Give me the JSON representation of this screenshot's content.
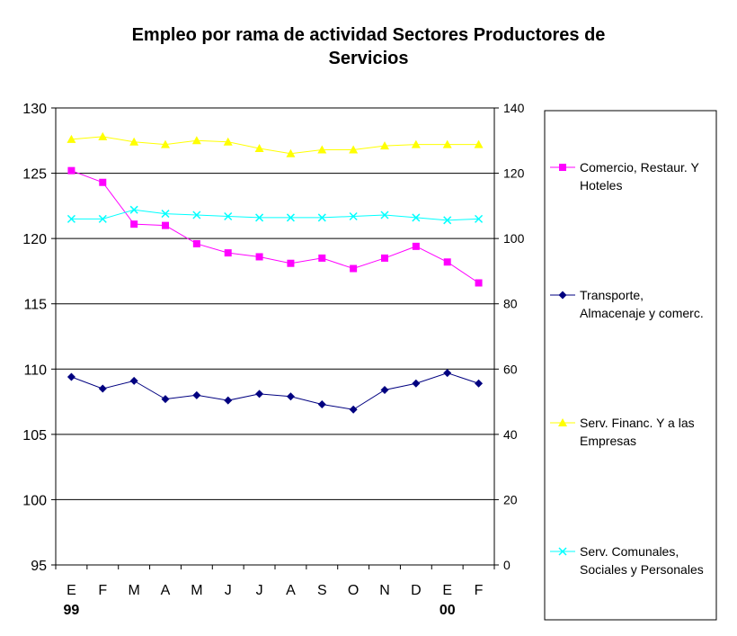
{
  "chart_data": {
    "type": "line",
    "title_lines": [
      "Empleo por rama de actividad Sectores Productores de",
      "Servicios"
    ],
    "categories": [
      "E",
      "F",
      "M",
      "A",
      "M",
      "J",
      "J",
      "A",
      "S",
      "O",
      "N",
      "D",
      "E",
      "F"
    ],
    "year_labels": [
      {
        "index": 0,
        "label": "99"
      },
      {
        "index": 12,
        "label": "00"
      }
    ],
    "y_left": {
      "min": 95,
      "max": 130,
      "ticks": [
        95,
        100,
        105,
        110,
        115,
        120,
        125,
        130
      ]
    },
    "y_right": {
      "min": 0,
      "max": 140,
      "ticks": [
        0,
        20,
        40,
        60,
        80,
        100,
        120,
        140
      ]
    },
    "grid": true,
    "legend_position": "right",
    "series": [
      {
        "name_lines": [
          "Comercio, Restaur. Y",
          "Hoteles"
        ],
        "axis": "left",
        "color": "#ff00ff",
        "marker": "square",
        "values": [
          125.2,
          124.3,
          121.1,
          121.0,
          119.6,
          118.9,
          118.6,
          118.1,
          118.5,
          117.7,
          118.5,
          119.4,
          118.2,
          116.6
        ]
      },
      {
        "name_lines": [
          "Transporte,",
          "Almacenaje y comerc."
        ],
        "axis": "left",
        "color": "#000080",
        "marker": "diamond",
        "values": [
          109.4,
          108.5,
          109.1,
          107.7,
          108.0,
          107.6,
          108.1,
          107.9,
          107.3,
          106.9,
          108.4,
          108.9,
          109.7,
          108.9
        ]
      },
      {
        "name_lines": [
          "Serv. Financ. Y a las",
          "Empresas"
        ],
        "axis": "left",
        "color": "#ffff00",
        "marker": "triangle",
        "values": [
          127.6,
          127.8,
          127.4,
          127.2,
          127.5,
          127.4,
          126.9,
          126.5,
          126.8,
          126.8,
          127.1,
          127.2,
          127.2,
          127.2
        ]
      },
      {
        "name_lines": [
          "Serv. Comunales,",
          "Sociales y Personales"
        ],
        "axis": "left",
        "color": "#00ffff",
        "marker": "x",
        "values": [
          121.5,
          121.5,
          122.2,
          121.9,
          121.8,
          121.7,
          121.6,
          121.6,
          121.6,
          121.7,
          121.8,
          121.6,
          121.4,
          121.5
        ]
      }
    ]
  }
}
